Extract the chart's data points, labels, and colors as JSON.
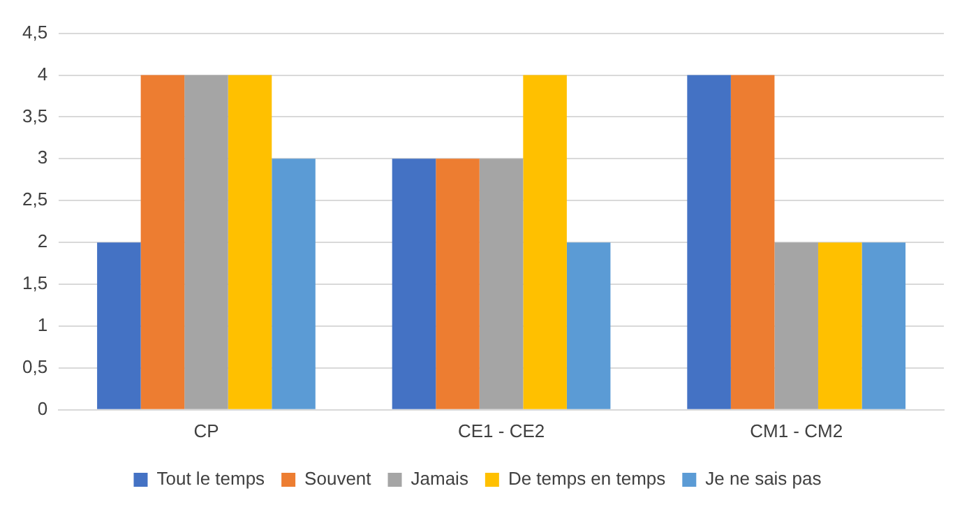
{
  "chart_data": {
    "type": "bar",
    "categories": [
      "CP",
      "CE1 - CE2",
      "CM1 - CM2"
    ],
    "series": [
      {
        "name": "Tout le temps",
        "color": "#4472c4",
        "values": [
          2,
          3,
          4
        ]
      },
      {
        "name": "Souvent",
        "color": "#ed7d31",
        "values": [
          4,
          3,
          4
        ]
      },
      {
        "name": "Jamais",
        "color": "#a5a5a5",
        "values": [
          4,
          3,
          2
        ]
      },
      {
        "name": "De temps en temps",
        "color": "#ffc000",
        "values": [
          4,
          4,
          2
        ]
      },
      {
        "name": "Je ne sais pas",
        "color": "#5b9bd5",
        "values": [
          3,
          2,
          2
        ]
      }
    ],
    "ylim": [
      0,
      4.5
    ],
    "yticks": [
      0,
      {
        "value": 0.5,
        "label": "0,5"
      },
      1,
      {
        "value": 1.5,
        "label": "1,5"
      },
      2,
      {
        "value": 2.5,
        "label": "2,5"
      },
      3,
      {
        "value": 3.5,
        "label": "3,5"
      },
      4,
      {
        "value": 4.5,
        "label": "4,5"
      }
    ],
    "grid": "y",
    "legend": "bottom"
  }
}
